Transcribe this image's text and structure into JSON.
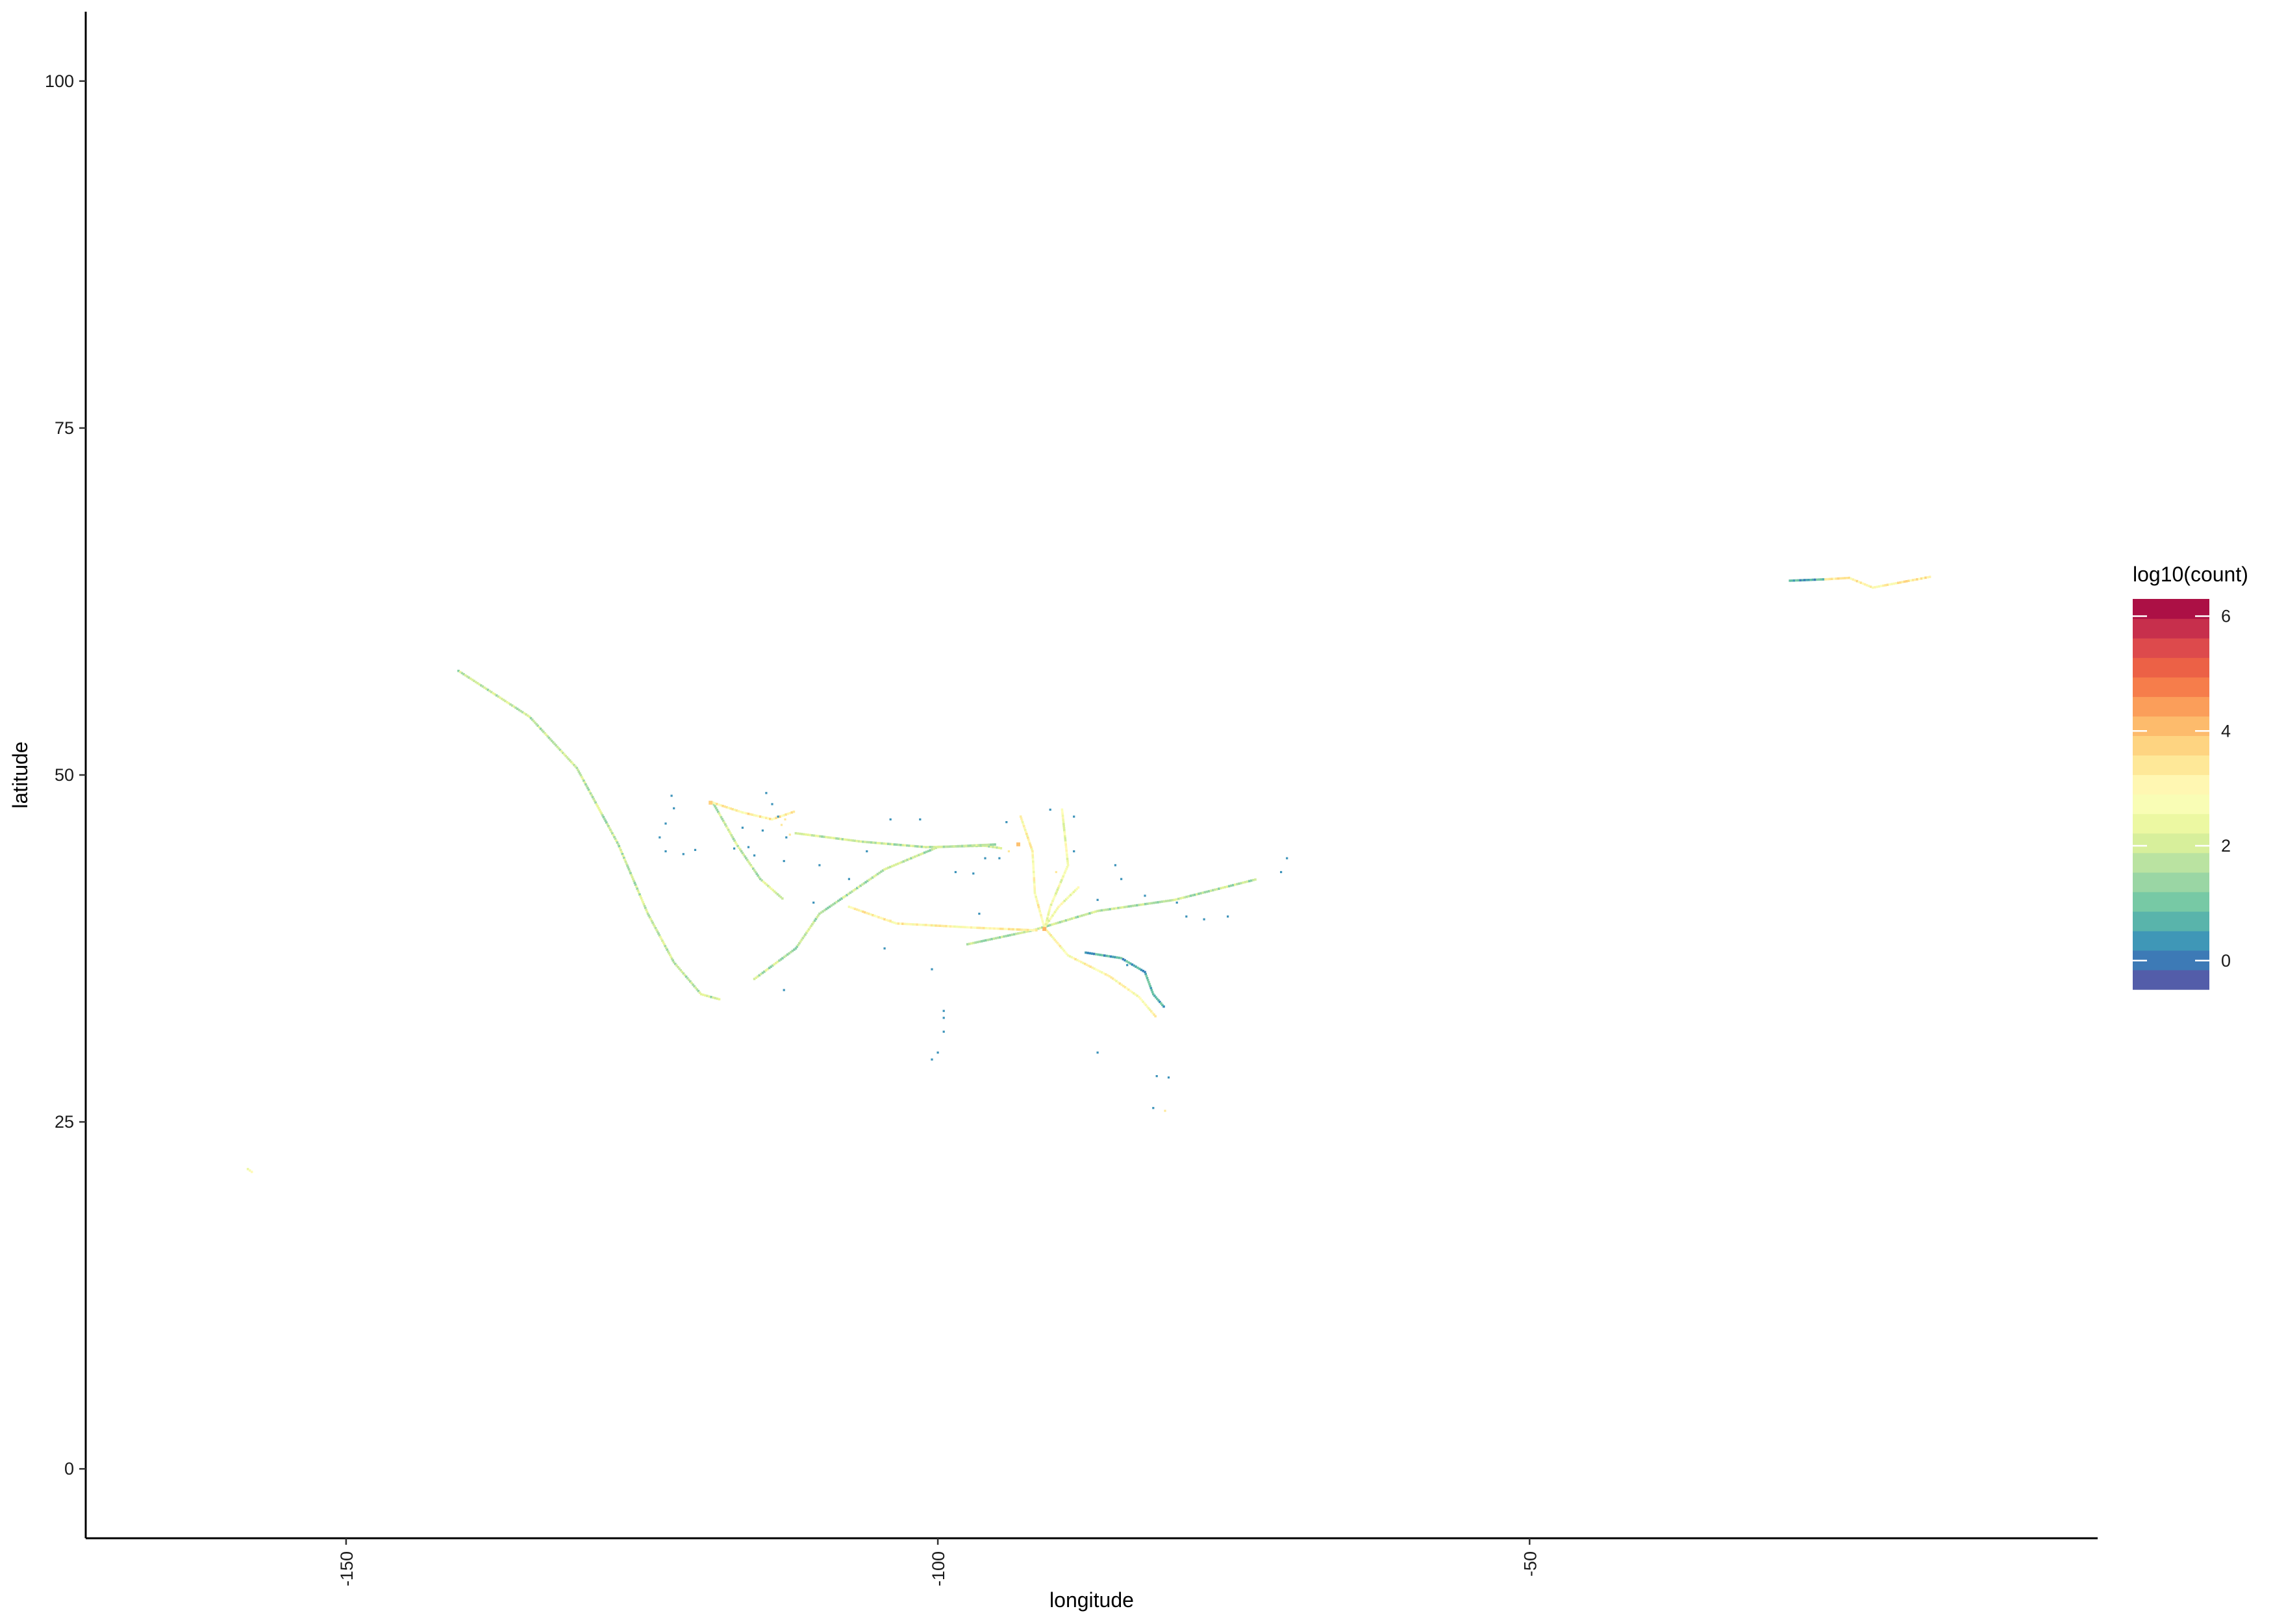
{
  "chart_data": {
    "type": "heatmap",
    "xlabel": "longitude",
    "ylabel": "latitude",
    "xlim": [
      -172,
      -2
    ],
    "ylim": [
      -5,
      105
    ],
    "x_ticks": [
      -150,
      -100,
      -50
    ],
    "x_tick_labels": [
      "-150",
      "-100",
      "-50"
    ],
    "y_ticks": [
      0,
      25,
      50,
      75,
      100
    ],
    "y_tick_labels": [
      "0",
      "25",
      "50",
      "75",
      "100"
    ],
    "grid": false,
    "legend": {
      "title": "log10(count)",
      "placement": "right",
      "range": [
        -0.5,
        6.3
      ],
      "ticks": [
        0,
        2,
        4,
        6
      ],
      "tick_labels": [
        "0",
        "2",
        "4",
        "6"
      ],
      "palette": [
        "#5E4FA2",
        "#3288BD",
        "#66C2A5",
        "#ABDDA4",
        "#E6F598",
        "#FFFFBF",
        "#FEE08B",
        "#FDAE61",
        "#F46D43",
        "#D53E4F",
        "#9E0142"
      ]
    },
    "tracks": [
      {
        "value": 1.8,
        "points": [
          [
            -140.5,
            57.5
          ],
          [
            -134.5,
            54.2
          ],
          [
            -130.5,
            50.5
          ],
          [
            -127.0,
            45.0
          ],
          [
            -124.5,
            40.0
          ],
          [
            -122.3,
            36.5
          ],
          [
            -120.0,
            34.2
          ],
          [
            -118.3,
            33.8
          ]
        ]
      },
      {
        "value": 1.9,
        "points": [
          [
            -119.0,
            48.0
          ],
          [
            -117.0,
            45.0
          ],
          [
            -115.0,
            42.5
          ],
          [
            -113.0,
            41.0
          ]
        ]
      },
      {
        "value": 1.8,
        "points": [
          [
            -112.0,
            45.8
          ],
          [
            -106.5,
            45.2
          ],
          [
            -101.0,
            44.8
          ],
          [
            -96.0,
            44.9
          ],
          [
            -94.5,
            44.7
          ]
        ]
      },
      {
        "value": 1.7,
        "points": [
          [
            -115.5,
            35.3
          ],
          [
            -112.0,
            37.5
          ],
          [
            -110.0,
            40.0
          ],
          [
            -104.5,
            43.2
          ],
          [
            -100.0,
            44.8
          ],
          [
            -95.0,
            45.0
          ]
        ]
      },
      {
        "value": 1.7,
        "points": [
          [
            -97.5,
            37.8
          ],
          [
            -92.0,
            38.8
          ],
          [
            -86.5,
            40.2
          ],
          [
            -80.0,
            41.0
          ],
          [
            -73.0,
            42.5
          ]
        ]
      },
      {
        "value": 3.1,
        "points": [
          [
            -107.5,
            40.5
          ],
          [
            -103.5,
            39.3
          ],
          [
            -97.0,
            39.0
          ],
          [
            -91.5,
            38.8
          ]
        ]
      },
      {
        "value": 3.0,
        "points": [
          [
            -93.0,
            47.0
          ],
          [
            -92.0,
            44.5
          ],
          [
            -91.8,
            41.5
          ],
          [
            -91.0,
            39.0
          ],
          [
            -89.0,
            37.0
          ],
          [
            -85.5,
            35.5
          ],
          [
            -83.0,
            34.0
          ],
          [
            -81.5,
            32.5
          ]
        ]
      },
      {
        "value": 2.6,
        "points": [
          [
            -89.5,
            47.5
          ],
          [
            -89.0,
            43.5
          ],
          [
            -90.5,
            40.5
          ],
          [
            -91.0,
            38.8
          ]
        ]
      },
      {
        "value": 2.6,
        "points": [
          [
            -91.0,
            39.0
          ],
          [
            -89.8,
            40.5
          ],
          [
            -88.0,
            42.0
          ]
        ]
      },
      {
        "value": 0.6,
        "points": [
          [
            -87.5,
            37.2
          ],
          [
            -84.5,
            36.8
          ],
          [
            -82.5,
            35.8
          ],
          [
            -81.8,
            34.2
          ],
          [
            -80.8,
            33.2
          ]
        ]
      },
      {
        "value": 3.2,
        "points": [
          [
            -119.0,
            48.0
          ],
          [
            -116.5,
            47.3
          ],
          [
            -114.0,
            46.8
          ],
          [
            -112.0,
            47.4
          ]
        ]
      },
      {
        "value": 0.6,
        "points": [
          [
            -28.0,
            64.0
          ],
          [
            -25.0,
            64.1
          ]
        ]
      },
      {
        "value": 3.2,
        "points": [
          [
            -25.0,
            64.1
          ],
          [
            -23.0,
            64.2
          ],
          [
            -21.0,
            63.5
          ],
          [
            -18.5,
            63.9
          ],
          [
            -16.0,
            64.3
          ]
        ]
      },
      {
        "value": 3.0,
        "points": [
          [
            -158.3,
            21.6
          ],
          [
            -157.8,
            21.3
          ]
        ]
      }
    ],
    "scatter": [
      {
        "value": 0.3,
        "points": [
          [
            -122.5,
            48.5
          ],
          [
            -122.3,
            47.6
          ],
          [
            -123.0,
            46.5
          ],
          [
            -123.5,
            45.5
          ],
          [
            -123.0,
            44.5
          ],
          [
            -121.5,
            44.3
          ],
          [
            -120.5,
            44.6
          ],
          [
            -114.5,
            48.7
          ],
          [
            -114.0,
            47.9
          ],
          [
            -113.5,
            47.0
          ],
          [
            -116.0,
            44.8
          ],
          [
            -117.2,
            44.7
          ],
          [
            -114.8,
            46.0
          ],
          [
            -115.5,
            44.2
          ],
          [
            -113.0,
            43.8
          ],
          [
            -110.0,
            43.5
          ],
          [
            -107.5,
            42.5
          ],
          [
            -106.0,
            44.5
          ],
          [
            -104.0,
            46.8
          ],
          [
            -101.5,
            46.8
          ],
          [
            -98.5,
            43.0
          ],
          [
            -97.0,
            42.9
          ],
          [
            -96.0,
            44.0
          ],
          [
            -94.8,
            44.0
          ],
          [
            -93.2,
            45.0
          ],
          [
            -94.2,
            46.6
          ],
          [
            -90.5,
            47.5
          ],
          [
            -88.5,
            47.0
          ],
          [
            -85.0,
            43.5
          ],
          [
            -84.5,
            42.5
          ],
          [
            -82.5,
            41.3
          ],
          [
            -79.8,
            40.8
          ],
          [
            -79.0,
            39.8
          ],
          [
            -77.5,
            39.6
          ],
          [
            -75.5,
            39.8
          ],
          [
            -71.0,
            43.0
          ],
          [
            -70.5,
            44.0
          ],
          [
            -104.5,
            37.5
          ],
          [
            -99.5,
            33.0
          ],
          [
            -99.5,
            32.5
          ],
          [
            -99.5,
            31.5
          ],
          [
            -100.0,
            30.0
          ],
          [
            -100.5,
            29.5
          ],
          [
            -86.5,
            30.0
          ],
          [
            -81.5,
            28.3
          ],
          [
            -80.5,
            28.2
          ],
          [
            -81.8,
            26.0
          ],
          [
            -113.0,
            34.5
          ],
          [
            -116.5,
            46.2
          ],
          [
            -112.8,
            45.5
          ],
          [
            -96.5,
            40.0
          ],
          [
            -88.5,
            44.5
          ],
          [
            -86.5,
            41.0
          ],
          [
            -100.5,
            36.0
          ],
          [
            -110.5,
            40.8
          ],
          [
            -84.0,
            36.3
          ]
        ]
      },
      {
        "value": 3.4,
        "points": [
          [
            -113.2,
            46.4
          ],
          [
            -112.5,
            45.7
          ],
          [
            -112.9,
            46.8
          ],
          [
            -104.0,
            39.5
          ],
          [
            -101.0,
            39.2
          ],
          [
            -80.8,
            25.8
          ],
          [
            -94.0,
            44.5
          ],
          [
            -90.0,
            43.0
          ]
        ]
      }
    ],
    "hotspots": [
      {
        "value": 4.2,
        "x": -91.0,
        "y": 38.9
      },
      {
        "value": 4.0,
        "x": -93.2,
        "y": 45.0
      },
      {
        "value": 3.8,
        "x": -119.2,
        "y": 48.0
      }
    ]
  }
}
